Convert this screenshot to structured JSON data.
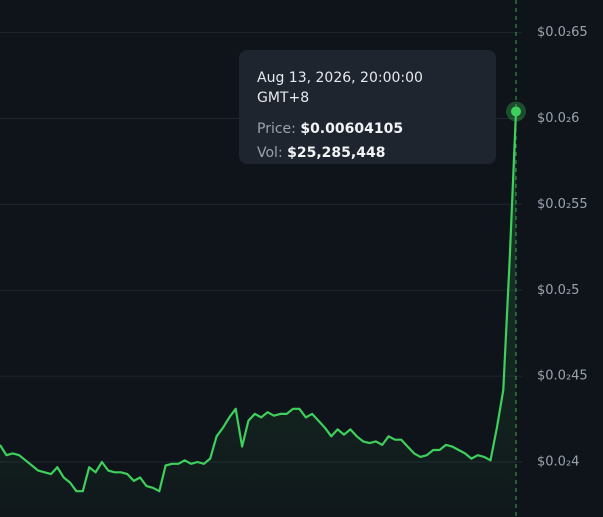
{
  "chart_data": {
    "type": "line",
    "values": [
      0.0041,
      0.00404,
      0.00405,
      0.00404,
      0.00401,
      0.00398,
      0.00395,
      0.00394,
      0.00393,
      0.00397,
      0.00391,
      0.00388,
      0.00383,
      0.00383,
      0.00397,
      0.00394,
      0.004,
      0.00395,
      0.00394,
      0.00394,
      0.00393,
      0.00389,
      0.00391,
      0.00386,
      0.00385,
      0.00383,
      0.00398,
      0.00399,
      0.00399,
      0.00401,
      0.00399,
      0.004,
      0.00399,
      0.00402,
      0.00415,
      0.0042,
      0.00426,
      0.00431,
      0.00409,
      0.00424,
      0.00428,
      0.00426,
      0.00429,
      0.00427,
      0.00428,
      0.00428,
      0.00431,
      0.00431,
      0.00426,
      0.00428,
      0.00424,
      0.0042,
      0.00415,
      0.00419,
      0.00416,
      0.00419,
      0.00415,
      0.00412,
      0.00411,
      0.00412,
      0.0041,
      0.00415,
      0.00413,
      0.00413,
      0.00409,
      0.00405,
      0.00403,
      0.00404,
      0.00407,
      0.00407,
      0.0041,
      0.00409,
      0.00407,
      0.00405,
      0.00402,
      0.00404,
      0.00403,
      0.00401,
      0.0042,
      0.00442,
      0.00517,
      0.00604105
    ],
    "color": "#3ecf5c",
    "ylim": [
      0.00368,
      0.00669
    ],
    "yticks": [
      {
        "value": 0.004,
        "label": "$0.0₂4"
      },
      {
        "value": 0.0045,
        "label": "$0.0₂45"
      },
      {
        "value": 0.005,
        "label": "$0.0₂5"
      },
      {
        "value": 0.0055,
        "label": "$0.0₂55"
      },
      {
        "value": 0.006,
        "label": "$0.0₂6"
      },
      {
        "value": 0.0065,
        "label": "$0.0₂65"
      }
    ],
    "grid": true
  },
  "tooltip": {
    "date": "Aug 13, 2026, 20:00:00 GMT+8",
    "price_label": "Price:",
    "price": "$0.00604105",
    "vol_label": "Vol:",
    "vol": "$25,285,448"
  }
}
